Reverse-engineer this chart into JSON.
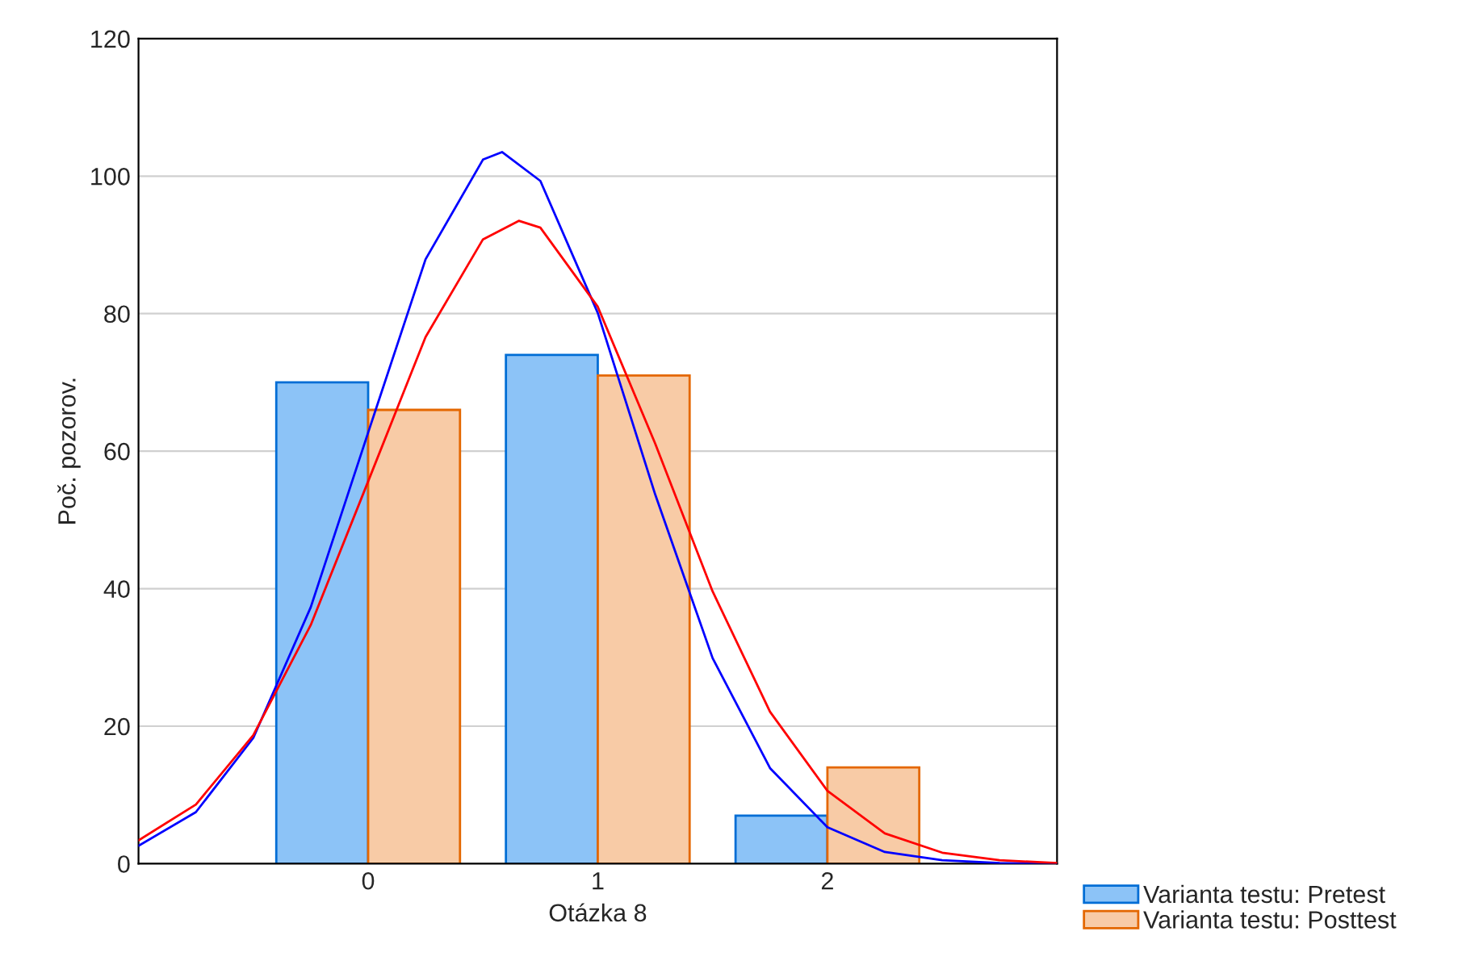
{
  "chart_data": {
    "type": "bar",
    "xlabel": "Otázka 8",
    "ylabel": "Poč. pozorov.",
    "x": [
      0,
      1,
      2
    ],
    "series": [
      {
        "name": "Varianta testu: Pretest",
        "color": "#8cc3f7",
        "values": [
          70,
          74,
          7
        ]
      },
      {
        "name": "Varianta testu: Posttest",
        "color": "#f8cba6",
        "values": [
          66,
          71,
          14
        ]
      },
      {
        "type": "line",
        "color": "#0000ff",
        "x": [
          -1,
          -0.75,
          -0.5,
          -0.25,
          0,
          0.25,
          0.5,
          0.583,
          0.75,
          1,
          1.25,
          1.5,
          1.75,
          2,
          2.25,
          2.5,
          2.75,
          3
        ],
        "values": [
          2.6,
          7.5,
          18.3,
          37.3,
          62.7,
          87.9,
          102.4,
          103.5,
          99.3,
          80.1,
          53.7,
          29.9,
          13.9,
          5.3,
          1.7,
          0.5,
          0.1,
          0
        ]
      },
      {
        "type": "line",
        "color": "#ff0000",
        "x": [
          -1,
          -0.75,
          -0.5,
          -0.25,
          0,
          0.25,
          0.5,
          0.656,
          0.75,
          1,
          1.25,
          1.5,
          1.75,
          2,
          2.25,
          2.5,
          2.75,
          3
        ],
        "values": [
          3.4,
          8.6,
          18.7,
          34.7,
          55.6,
          76.6,
          90.8,
          93.5,
          92.5,
          81.0,
          61.1,
          39.6,
          22.1,
          10.6,
          4.4,
          1.6,
          0.5,
          0.1
        ]
      }
    ],
    "xlim": [
      -1,
      3
    ],
    "xticks": [
      0,
      1,
      2
    ],
    "ylim": [
      0,
      120
    ],
    "yticks": [
      0,
      20,
      40,
      60,
      80,
      100,
      120
    ],
    "grid": "y",
    "legend": "bottom right"
  }
}
